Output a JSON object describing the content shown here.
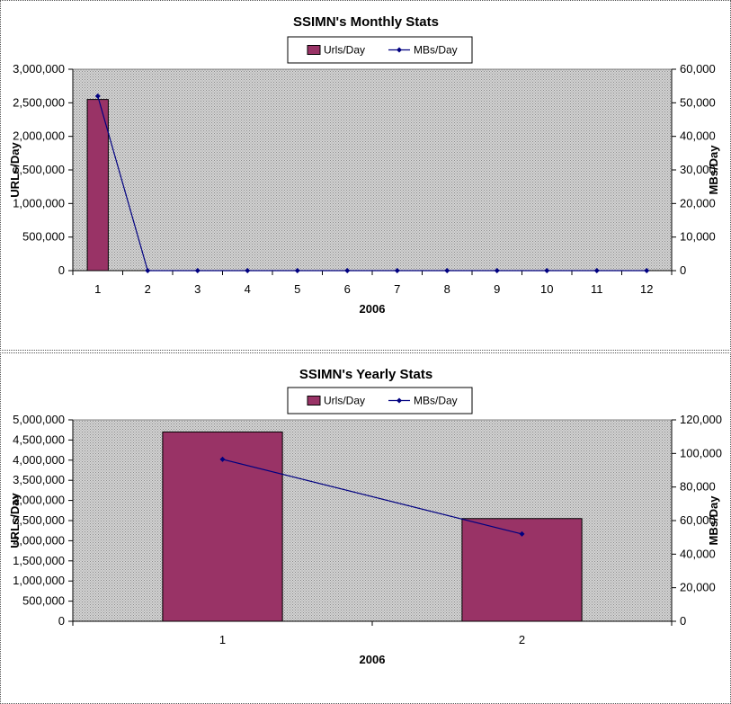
{
  "chart_data": [
    {
      "type": "bar+line",
      "title": "SSIMN's Monthly Stats",
      "xlabel": "2006",
      "ylabel_left": "URLs/Day",
      "ylabel_right": "MBs/Day",
      "categories": [
        "1",
        "2",
        "3",
        "4",
        "5",
        "6",
        "7",
        "8",
        "9",
        "10",
        "11",
        "12"
      ],
      "series": [
        {
          "name": "Urls/Day",
          "kind": "bar",
          "axis": "left",
          "values": [
            2550000,
            0,
            0,
            0,
            0,
            0,
            0,
            0,
            0,
            0,
            0,
            0
          ]
        },
        {
          "name": "MBs/Day",
          "kind": "line",
          "axis": "right",
          "values": [
            52000,
            0,
            0,
            0,
            0,
            0,
            0,
            0,
            0,
            0,
            0,
            0
          ]
        }
      ],
      "ylim_left": [
        0,
        3000000
      ],
      "yticks_left": [
        "0",
        "500,000",
        "1,000,000",
        "1,500,000",
        "2,000,000",
        "2,500,000",
        "3,000,000"
      ],
      "ylim_right": [
        0,
        60000
      ],
      "yticks_right": [
        "0",
        "10,000",
        "20,000",
        "30,000",
        "40,000",
        "50,000",
        "60,000"
      ],
      "legend": "top-center",
      "colors": {
        "bar": "#993366",
        "line": "#000080",
        "plot_bg": "#c0c0c0"
      }
    },
    {
      "type": "bar+line",
      "title": "SSIMN's Yearly Stats",
      "xlabel": "2006",
      "ylabel_left": "URLs/Day",
      "ylabel_right": "MBs/Day",
      "categories": [
        "1",
        "2"
      ],
      "series": [
        {
          "name": "Urls/Day",
          "kind": "bar",
          "axis": "left",
          "values": [
            4700000,
            2550000
          ]
        },
        {
          "name": "MBs/Day",
          "kind": "line",
          "axis": "right",
          "values": [
            96500,
            52000
          ]
        }
      ],
      "ylim_left": [
        0,
        5000000
      ],
      "yticks_left": [
        "0",
        "500,000",
        "1,000,000",
        "1,500,000",
        "2,000,000",
        "2,500,000",
        "3,000,000",
        "3,500,000",
        "4,000,000",
        "4,500,000",
        "5,000,000"
      ],
      "ylim_right": [
        0,
        120000
      ],
      "yticks_right": [
        "0",
        "20,000",
        "40,000",
        "60,000",
        "80,000",
        "100,000",
        "120,000"
      ],
      "legend": "top-center",
      "colors": {
        "bar": "#993366",
        "line": "#000080",
        "plot_bg": "#c0c0c0"
      }
    }
  ]
}
